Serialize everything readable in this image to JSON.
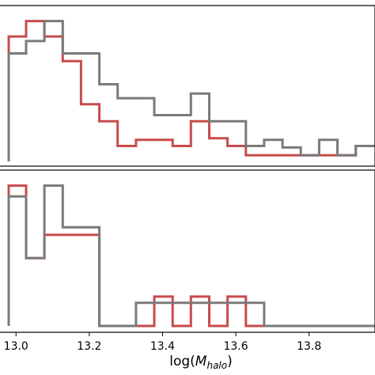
{
  "chart_data": [
    {
      "type": "step",
      "panel": "top",
      "bin_edges": [
        12.98,
        13.0275,
        13.0775,
        13.1275,
        13.1775,
        13.2275,
        13.2775,
        13.3275,
        13.3775,
        13.4275,
        13.4775,
        13.5275,
        13.5775,
        13.6275,
        13.6775,
        13.7275,
        13.7775,
        13.8275,
        13.8775,
        13.9275,
        13.98
      ],
      "xlim": [
        12.98,
        13.98
      ],
      "ylim": [
        0,
        10
      ],
      "series": [
        {
          "color": "#c84b4b",
          "values": [
            8.1,
            9.1,
            8.1,
            6.5,
            3.7,
            2.6,
            1.0,
            1.4,
            1.4,
            1.0,
            2.6,
            1.5,
            1.0,
            0.4,
            0.4,
            0.4,
            0.4,
            0.4,
            0.4,
            1.0
          ]
        },
        {
          "color": "#7a7a7a",
          "values": [
            7.0,
            7.8,
            9.1,
            7.0,
            7.0,
            5.0,
            4.1,
            4.1,
            3.0,
            3.0,
            4.4,
            2.6,
            2.6,
            1.0,
            1.4,
            0.9,
            0.4,
            1.4,
            0.4,
            1.0
          ]
        }
      ]
    },
    {
      "type": "step",
      "panel": "bottom",
      "bin_edges": [
        12.98,
        13.0275,
        13.0775,
        13.1275,
        13.1775,
        13.2275,
        13.2775,
        13.3275,
        13.3775,
        13.4275,
        13.4775,
        13.5275,
        13.5775,
        13.6275,
        13.6775,
        13.7275,
        13.7775,
        13.8275,
        13.8775,
        13.9275,
        13.98
      ],
      "xlim": [
        12.98,
        13.98
      ],
      "ylim": [
        0,
        10
      ],
      "xticks": [
        13.0,
        13.2,
        13.4,
        13.6,
        13.8
      ],
      "xtick_labels": [
        "13.0",
        "13.2",
        "13.4",
        "13.6",
        "13.8"
      ],
      "xlabel": "log(M_halo)",
      "xlabel_base": "log(",
      "xlabel_symbol": "M",
      "xlabel_sub": "halo",
      "xlabel_close": ")",
      "series": [
        {
          "color": "#c84b4b",
          "values": [
            9.1,
            4.4,
            5.9,
            5.9,
            5.9,
            0.0,
            0.0,
            0.0,
            1.9,
            0.0,
            1.9,
            0.0,
            1.9,
            0.0,
            0.0,
            0.0,
            0.0,
            0.0,
            0.0,
            0.0
          ]
        },
        {
          "color": "#7a7a7a",
          "values": [
            8.4,
            4.4,
            9.1,
            6.4,
            6.4,
            0.0,
            0.0,
            1.5,
            1.5,
            1.5,
            1.5,
            1.5,
            1.5,
            1.5,
            0.0,
            0.0,
            0.0,
            0.0,
            0.0,
            0.0
          ]
        }
      ]
    }
  ]
}
